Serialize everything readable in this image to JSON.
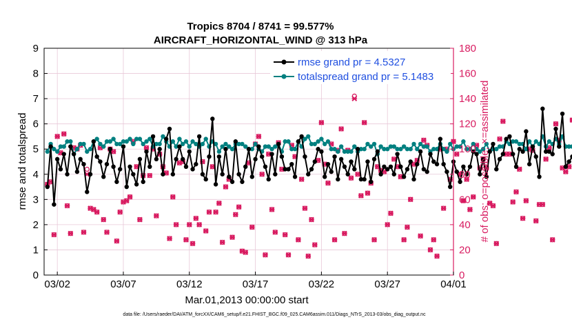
{
  "chart_data": {
    "type": "line",
    "title": "Tropics 8704 / 8741 = 99.577%",
    "subtitle": "AIRCRAFT_HORIZONTAL_WIND @ 313 hPa",
    "xlabel": "Mar.01,2013 00:00:00 start",
    "ylabel_left": "rmse and totalspread",
    "ylabel_right": "# of obs: o=possible; ×=assimilated",
    "footer": "data file: /Users/raeder/DAI/ATM_forcXX/CAM6_setup/f.e21.FHIST_BGC.f09_025.CAM6assim.011/Diags_NTrS_2013-03/obs_diag_output.nc",
    "x_ticks": [
      "03/02",
      "03/07",
      "03/12",
      "03/17",
      "03/22",
      "03/27",
      "04/01"
    ],
    "x_tick_values": [
      1,
      6,
      11,
      16,
      21,
      26,
      31
    ],
    "xlim": [
      0,
      31
    ],
    "ylim_left": [
      0,
      9
    ],
    "yticks_left": [
      "0",
      "1",
      "2",
      "3",
      "4",
      "5",
      "6",
      "7",
      "8",
      "9"
    ],
    "ylim_right": [
      0,
      180
    ],
    "yticks_right": [
      "0",
      "20",
      "40",
      "60",
      "80",
      "100",
      "120",
      "140",
      "160",
      "180"
    ],
    "colors": {
      "rmse": "#000000",
      "totalspread": "#008080",
      "obs": "#d81b60",
      "legend_text": "#1f4fe0",
      "grid": "#e8c8d8"
    },
    "legend": {
      "position": "top-right",
      "entries": [
        "rmse grand pr = 4.5327",
        "totalspread grand pr = 5.1483"
      ]
    },
    "series": [
      {
        "name": "rmse",
        "axis": "left",
        "x_start": 0.25,
        "x_step": 0.25,
        "values": [
          3.5,
          5.1,
          2.8,
          4.6,
          4.2,
          4.8,
          4.0,
          5.1,
          4.8,
          4.1,
          4.6,
          4.4,
          3.3,
          4.0,
          5.3,
          4.7,
          4.5,
          3.9,
          4.4,
          5.0,
          4.3,
          3.7,
          4.2,
          5.1,
          3.5,
          4.3,
          4.0,
          3.6,
          4.6,
          3.7,
          4.9,
          4.3,
          5.5,
          4.6,
          5.0,
          4.0,
          5.4,
          5.8,
          4.0,
          4.6,
          5.1,
          4.6,
          4.3,
          4.9,
          4.2,
          4.4,
          5.5,
          4.0,
          3.8,
          4.7,
          6.2,
          3.6,
          4.7,
          4.0,
          5.0,
          3.9,
          3.7,
          5.3,
          4.0,
          3.7,
          4.3,
          5.0,
          3.9,
          4.6,
          5.1,
          4.7,
          4.3,
          3.8,
          4.8,
          4.0,
          5.2,
          4.7,
          4.2,
          4.2,
          4.4,
          3.9,
          5.3,
          5.5,
          4.7,
          4.0,
          4.2,
          4.5,
          5.0,
          4.9,
          3.9,
          4.4,
          4.1,
          4.7,
          3.8,
          4.6,
          4.3,
          4.0,
          4.5,
          4.2,
          5.0,
          3.8,
          3.8,
          4.5,
          3.7,
          4.6,
          4.9,
          4.0,
          4.3,
          4.2,
          4.3,
          4.0,
          4.8,
          4.3,
          3.9,
          4.2,
          4.5,
          3.8,
          4.4,
          4.9,
          4.2,
          4.1,
          4.8,
          4.5,
          4.4,
          5.4,
          4.4,
          4.1,
          3.5,
          4.5,
          4.1,
          3.7,
          4.3,
          4.0,
          4.3,
          4.9,
          4.8,
          4.0,
          4.6,
          3.9,
          4.9,
          5.2,
          4.2,
          4.6,
          4.8,
          5.4,
          5.5,
          4.8,
          4.3,
          5.0,
          4.9,
          5.7,
          4.4,
          5.1,
          4.7,
          3.9,
          6.6,
          4.9,
          4.9,
          4.8,
          5.8,
          5.1,
          6.4,
          4.3,
          4.5,
          4.7,
          4.5
        ]
      },
      {
        "name": "totalspread",
        "axis": "left",
        "x_start": 0.25,
        "x_step": 0.25,
        "values": [
          4.9,
          5.2,
          5.0,
          4.9,
          5.1,
          5.1,
          5.3,
          5.3,
          4.8,
          5.0,
          5.2,
          5.2,
          4.9,
          5.0,
          5.3,
          5.4,
          5.2,
          5.1,
          5.3,
          5.3,
          5.4,
          5.2,
          5.2,
          5.3,
          5.3,
          5.4,
          5.2,
          5.4,
          5.4,
          5.2,
          5.3,
          5.4,
          5.1,
          5.2,
          5.2,
          5.5,
          5.3,
          5.1,
          5.3,
          5.1,
          5.4,
          5.2,
          5.3,
          5.1,
          5.3,
          5.2,
          5.1,
          5.2,
          5.4,
          5.1,
          5.3,
          5.2,
          4.9,
          5.1,
          5.2,
          5.1,
          5.0,
          5.2,
          5.2,
          5.2,
          5.1,
          5.0,
          5.0,
          5.2,
          5.0,
          4.9,
          5.1,
          5.1,
          5.0,
          5.1,
          5.2,
          4.9,
          5.3,
          5.3,
          5.0,
          5.0,
          5.3,
          5.1,
          5.4,
          5.5,
          5.2,
          5.2,
          5.3,
          5.4,
          5.2,
          5.3,
          5.0,
          5.0,
          4.9,
          5.1,
          4.9,
          4.9,
          4.9,
          5.1,
          4.9,
          5.0,
          5.0,
          5.2,
          5.1,
          5.2,
          4.8,
          5.1,
          5.0,
          5.0,
          5.1,
          5.1,
          5.0,
          5.0,
          5.1,
          5.0,
          5.0,
          5.2,
          5.0,
          5.2,
          5.1,
          5.1,
          4.9,
          5.0,
          5.0,
          5.2,
          5.0,
          4.9,
          5.2,
          5.0,
          5.1,
          5.1,
          5.3,
          5.0,
          5.0,
          5.2,
          5.0,
          4.9,
          5.0,
          5.2,
          4.9,
          5.0,
          5.0,
          5.1,
          5.1,
          5.3,
          5.2,
          5.3,
          5.3,
          5.2,
          5.2,
          5.0,
          5.3,
          5.1,
          5.3,
          5.2,
          5.5,
          5.1,
          5.3,
          5.2,
          5.4,
          5.2,
          5.5,
          5.1,
          5.1,
          5.1,
          5.0
        ]
      },
      {
        "name": "obs_possible",
        "axis": "right",
        "x_start": 0.25,
        "x_step": 0.25,
        "values": [
          72,
          74,
          32,
          110,
          97,
          112,
          55,
          33,
          101,
          100,
          103,
          34,
          84,
          53,
          52,
          50,
          101,
          44,
          34,
          100,
          98,
          27,
          50,
          58,
          59,
          62,
          106,
          86,
          44,
          79,
          101,
          79,
          100,
          47,
          96,
          86,
          81,
          29,
          62,
          40,
          89,
          90,
          28,
          40,
          25,
          45,
          40,
          90,
          35,
          50,
          86,
          50,
          57,
          26,
          70,
          76,
          30,
          48,
          54,
          19,
          18,
          89,
          38,
          104,
          110,
          80,
          16,
          96,
          52,
          34,
          105,
          84,
          32,
          16,
          103,
          94,
          28,
          76,
          53,
          15,
          44,
          24,
          91,
          121,
          88,
          73,
          104,
          28,
          99,
          116,
          33,
          99,
          77,
          142,
          80,
          63,
          121,
          65,
          73,
          28,
          86,
          83,
          82,
          40,
          49,
          92,
          86,
          78,
          28,
          38,
          60,
          88,
          91,
          31,
          107,
          103,
          20,
          28,
          15,
          100,
          53,
          100,
          76,
          106,
          96,
          80,
          59,
          76,
          52,
          62,
          103,
          85,
          92,
          85,
          57,
          55,
          25,
          108,
          122,
          96,
          96,
          58,
          66,
          84,
          45,
          59,
          100,
          99,
          43,
          56,
          56,
          92,
          101,
          28,
          120,
          107,
          85,
          82,
          86,
          123,
          80
        ]
      },
      {
        "name": "obs_assimilated",
        "axis": "right",
        "x_start": 0.25,
        "x_step": 0.25,
        "values": [
          72,
          74,
          32,
          110,
          97,
          112,
          55,
          33,
          101,
          100,
          103,
          34,
          80,
          53,
          52,
          50,
          101,
          44,
          34,
          100,
          98,
          27,
          50,
          58,
          59,
          62,
          106,
          86,
          44,
          79,
          101,
          79,
          100,
          47,
          96,
          86,
          81,
          29,
          62,
          40,
          89,
          90,
          28,
          40,
          25,
          45,
          40,
          90,
          35,
          50,
          86,
          50,
          57,
          26,
          70,
          76,
          30,
          48,
          54,
          19,
          18,
          89,
          38,
          104,
          110,
          80,
          16,
          96,
          52,
          34,
          105,
          84,
          32,
          16,
          103,
          94,
          28,
          76,
          53,
          15,
          44,
          24,
          91,
          121,
          88,
          73,
          104,
          28,
          99,
          116,
          33,
          99,
          77,
          140,
          80,
          63,
          121,
          65,
          73,
          28,
          86,
          83,
          82,
          40,
          49,
          92,
          86,
          78,
          28,
          38,
          60,
          88,
          91,
          31,
          107,
          103,
          20,
          28,
          15,
          100,
          53,
          100,
          76,
          106,
          96,
          80,
          59,
          76,
          52,
          62,
          103,
          85,
          92,
          85,
          57,
          55,
          25,
          108,
          122,
          96,
          96,
          58,
          66,
          84,
          45,
          59,
          100,
          99,
          43,
          56,
          56,
          92,
          101,
          28,
          120,
          107,
          85,
          82,
          86,
          123,
          80
        ]
      }
    ]
  }
}
